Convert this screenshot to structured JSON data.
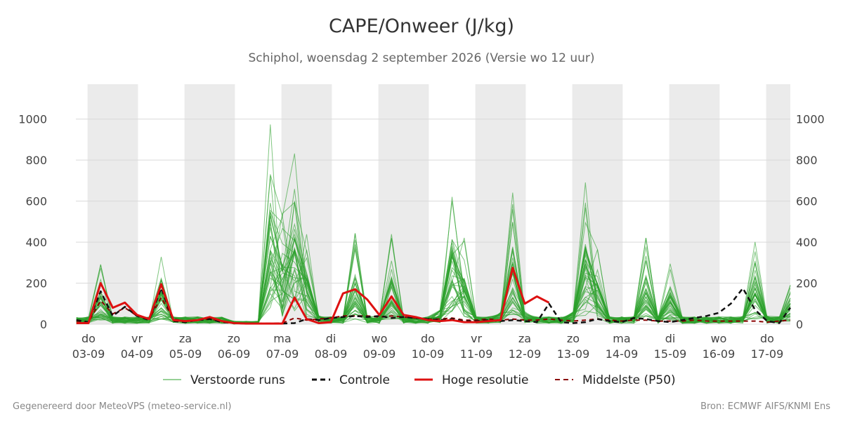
{
  "header": {
    "title": "CAPE/Onweer (J/kg)",
    "subtitle": "Schiphol, woensdag  2 september 2026 (Versie wo 12 uur)"
  },
  "footer": {
    "left": "Gegenereerd door MeteoVPS (meteo-service.nl)",
    "right": "Bron: ECMWF AIFS/KNMI Ens"
  },
  "chart_data": {
    "type": "line",
    "title": "CAPE/Onweer (J/kg)",
    "subtitle": "Schiphol, woensdag  2 september 2026 (Versie wo 12 uur)",
    "x_unit_note": "dates 03-09 .. 17-09 with 6-hourly steps; x given as day index from first tick",
    "ylim": [
      0,
      1170
    ],
    "yticks": [
      0,
      200,
      400,
      600,
      800,
      1000
    ],
    "xticks": [
      {
        "day": "do",
        "date": "03-09"
      },
      {
        "day": "vr",
        "date": "04-09"
      },
      {
        "day": "za",
        "date": "05-09"
      },
      {
        "day": "zo",
        "date": "06-09"
      },
      {
        "day": "ma",
        "date": "07-09"
      },
      {
        "day": "di",
        "date": "08-09"
      },
      {
        "day": "wo",
        "date": "09-09"
      },
      {
        "day": "do",
        "date": "10-09"
      },
      {
        "day": "vr",
        "date": "11-09"
      },
      {
        "day": "za",
        "date": "12-09"
      },
      {
        "day": "zo",
        "date": "13-09"
      },
      {
        "day": "ma",
        "date": "14-09"
      },
      {
        "day": "di",
        "date": "15-09"
      },
      {
        "day": "wo",
        "date": "16-09"
      },
      {
        "day": "do",
        "date": "17-09"
      }
    ],
    "shaded_days": [
      "03-09",
      "05-09",
      "07-09",
      "09-09",
      "11-09",
      "13-09",
      "15-09",
      "17-09"
    ],
    "grid": "horizontal",
    "legend_placement": "bottom",
    "colors": {
      "ensemble": "#2ca02c",
      "control": "#111111",
      "high_res": "#dd1111",
      "median": "#8b0000",
      "shade": "#ebebeb",
      "grid": "#d9d9d9"
    },
    "legend": {
      "ensemble": "Verstoorde runs",
      "control": "Controle",
      "high_res": "Hoge resolutie",
      "median": "Middelste (P50)"
    },
    "series": [
      {
        "key": "high_res",
        "name": "Hoge resolutie",
        "points": [
          [
            -0.25,
            5
          ],
          [
            0,
            5
          ],
          [
            0.25,
            200
          ],
          [
            0.5,
            80
          ],
          [
            0.75,
            105
          ],
          [
            1,
            45
          ],
          [
            1.25,
            25
          ],
          [
            1.5,
            195
          ],
          [
            1.75,
            20
          ],
          [
            2,
            15
          ],
          [
            2.25,
            20
          ],
          [
            2.5,
            35
          ],
          [
            2.75,
            15
          ],
          [
            3,
            5
          ],
          [
            3.25,
            3
          ],
          [
            3.5,
            3
          ],
          [
            3.75,
            3
          ],
          [
            4,
            3
          ],
          [
            4.25,
            130
          ],
          [
            4.5,
            25
          ],
          [
            4.75,
            5
          ],
          [
            5,
            10
          ],
          [
            5.25,
            150
          ],
          [
            5.5,
            170
          ],
          [
            5.75,
            120
          ],
          [
            6,
            45
          ],
          [
            6.25,
            135
          ],
          [
            6.5,
            45
          ],
          [
            6.75,
            35
          ],
          [
            7,
            20
          ],
          [
            7.25,
            15
          ],
          [
            7.5,
            20
          ],
          [
            7.75,
            10
          ],
          [
            8,
            10
          ],
          [
            8.25,
            15
          ],
          [
            8.5,
            20
          ],
          [
            8.75,
            275
          ],
          [
            9,
            100
          ],
          [
            9.25,
            135
          ],
          [
            9.5,
            105
          ]
        ]
      },
      {
        "key": "control",
        "name": "Controle",
        "points": [
          [
            -0.25,
            20
          ],
          [
            0,
            10
          ],
          [
            0.25,
            160
          ],
          [
            0.5,
            40
          ],
          [
            0.75,
            85
          ],
          [
            1,
            40
          ],
          [
            1.25,
            20
          ],
          [
            1.5,
            175
          ],
          [
            1.75,
            15
          ],
          [
            2,
            10
          ],
          [
            2.25,
            20
          ],
          [
            2.5,
            25
          ],
          [
            2.75,
            10
          ],
          [
            3,
            5
          ],
          [
            3.25,
            3
          ],
          [
            3.5,
            3
          ],
          [
            3.75,
            3
          ],
          [
            4,
            3
          ],
          [
            4.25,
            5
          ],
          [
            4.5,
            25
          ],
          [
            4.75,
            20
          ],
          [
            5,
            30
          ],
          [
            5.25,
            35
          ],
          [
            5.5,
            40
          ],
          [
            5.75,
            35
          ],
          [
            6,
            40
          ],
          [
            6.25,
            30
          ],
          [
            6.5,
            35
          ],
          [
            6.75,
            30
          ],
          [
            7,
            25
          ],
          [
            7.25,
            20
          ],
          [
            7.5,
            25
          ],
          [
            7.75,
            15
          ],
          [
            8,
            15
          ],
          [
            8.25,
            20
          ],
          [
            8.5,
            15
          ],
          [
            8.75,
            20
          ],
          [
            9,
            15
          ],
          [
            9.25,
            10
          ],
          [
            9.5,
            100
          ],
          [
            9.75,
            10
          ],
          [
            10,
            5
          ],
          [
            10.25,
            10
          ],
          [
            10.5,
            25
          ],
          [
            10.75,
            15
          ],
          [
            11,
            10
          ],
          [
            11.25,
            30
          ],
          [
            11.5,
            25
          ],
          [
            11.75,
            15
          ],
          [
            12,
            10
          ],
          [
            12.25,
            20
          ],
          [
            12.5,
            30
          ],
          [
            12.75,
            40
          ],
          [
            13,
            55
          ],
          [
            13.25,
            100
          ],
          [
            13.5,
            175
          ],
          [
            13.75,
            70
          ],
          [
            14,
            15
          ],
          [
            14.25,
            5
          ],
          [
            14.5,
            80
          ]
        ]
      },
      {
        "key": "median",
        "name": "Middelste (P50)",
        "points": [
          [
            -0.25,
            15
          ],
          [
            0,
            10
          ],
          [
            0.25,
            115
          ],
          [
            0.5,
            50
          ],
          [
            0.75,
            80
          ],
          [
            1,
            40
          ],
          [
            1.25,
            25
          ],
          [
            1.5,
            130
          ],
          [
            1.75,
            25
          ],
          [
            2,
            15
          ],
          [
            2.25,
            20
          ],
          [
            2.5,
            25
          ],
          [
            2.75,
            15
          ],
          [
            3,
            5
          ],
          [
            3.25,
            3
          ],
          [
            3.5,
            3
          ],
          [
            3.75,
            3
          ],
          [
            4,
            5
          ],
          [
            4.25,
            30
          ],
          [
            4.5,
            20
          ],
          [
            4.75,
            25
          ],
          [
            5,
            30
          ],
          [
            5.25,
            40
          ],
          [
            5.5,
            40
          ],
          [
            5.75,
            40
          ],
          [
            6,
            35
          ],
          [
            6.25,
            40
          ],
          [
            6.5,
            35
          ],
          [
            6.75,
            30
          ],
          [
            7,
            25
          ],
          [
            7.25,
            25
          ],
          [
            7.5,
            30
          ],
          [
            7.75,
            20
          ],
          [
            8,
            20
          ],
          [
            8.25,
            25
          ],
          [
            8.5,
            20
          ],
          [
            8.75,
            25
          ],
          [
            9,
            20
          ],
          [
            9.25,
            20
          ],
          [
            9.5,
            25
          ],
          [
            9.75,
            20
          ],
          [
            10,
            15
          ],
          [
            10.25,
            20
          ],
          [
            10.5,
            25
          ],
          [
            10.75,
            20
          ],
          [
            11,
            15
          ],
          [
            11.25,
            20
          ],
          [
            11.5,
            20
          ],
          [
            11.75,
            15
          ],
          [
            12,
            15
          ],
          [
            12.25,
            15
          ],
          [
            12.5,
            20
          ],
          [
            12.75,
            15
          ],
          [
            13,
            15
          ],
          [
            13.25,
            15
          ],
          [
            13.5,
            15
          ],
          [
            13.75,
            15
          ],
          [
            14,
            10
          ],
          [
            14.25,
            15
          ],
          [
            14.5,
            20
          ]
        ]
      }
    ]
  }
}
